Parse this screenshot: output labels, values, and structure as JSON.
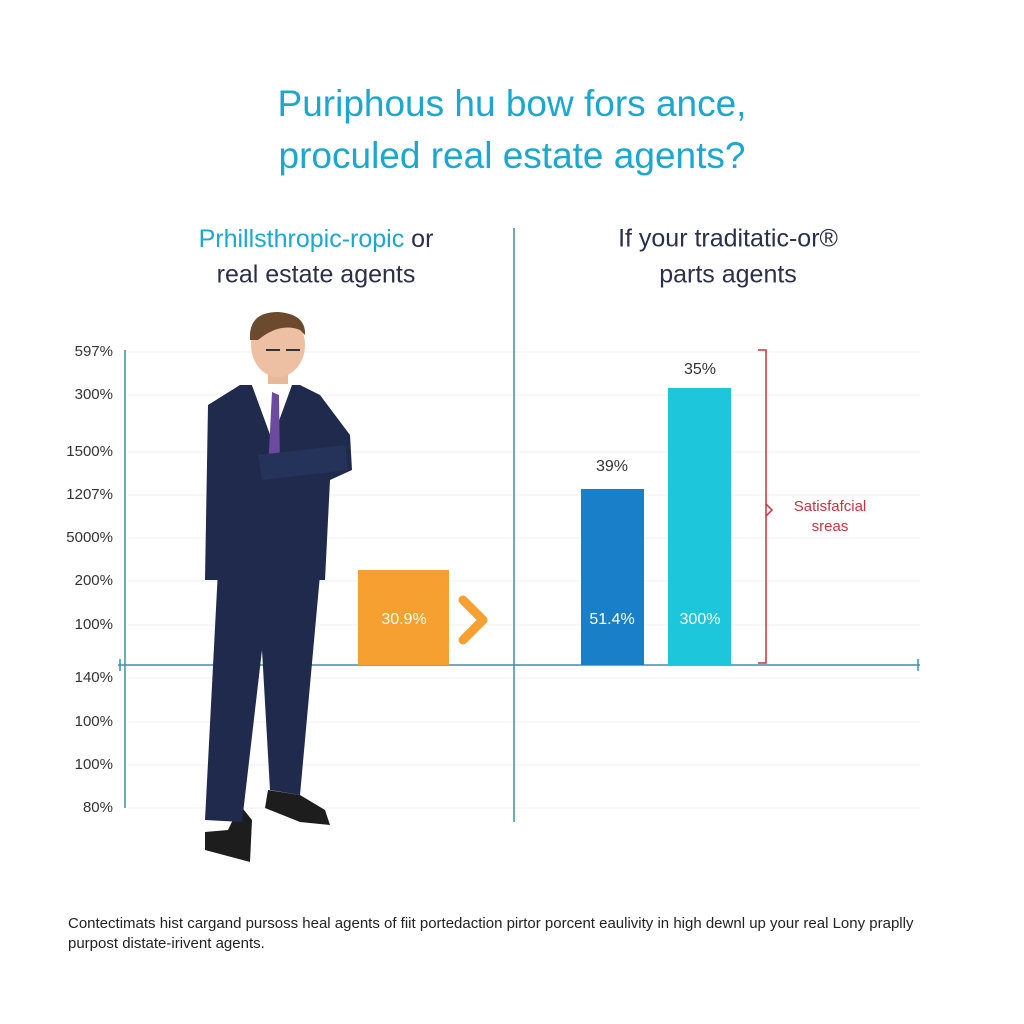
{
  "title": [
    "Puriphous hu bow fors ance,",
    "proculed real estate agents?"
  ],
  "left_heading": {
    "highlight": "Prhillsthropic-ropic",
    "rest": "or",
    "line2": "real estate agents"
  },
  "right_heading": [
    "If your traditatic-or®",
    "parts agents"
  ],
  "axis_labels": [
    "597%",
    "300%",
    "1500%",
    "1207%",
    "5000%",
    "200%",
    "100%",
    "140%",
    "100%",
    "100%",
    "80%"
  ],
  "bars": [
    {
      "inner_label": "30.9%"
    },
    {
      "top_label": "39%",
      "inner_label": "51.4%"
    },
    {
      "top_label": "35%",
      "inner_label": "300%"
    }
  ],
  "annotation": [
    "Satisfafcial",
    "sreas"
  ],
  "footnote": [
    "Contectimats hist cargand pursoss heal agents of fiit portedaction pirtor porcent eaulivity in high dewnl up your real Lony praplly",
    "purpost distate-irivent agents."
  ]
}
